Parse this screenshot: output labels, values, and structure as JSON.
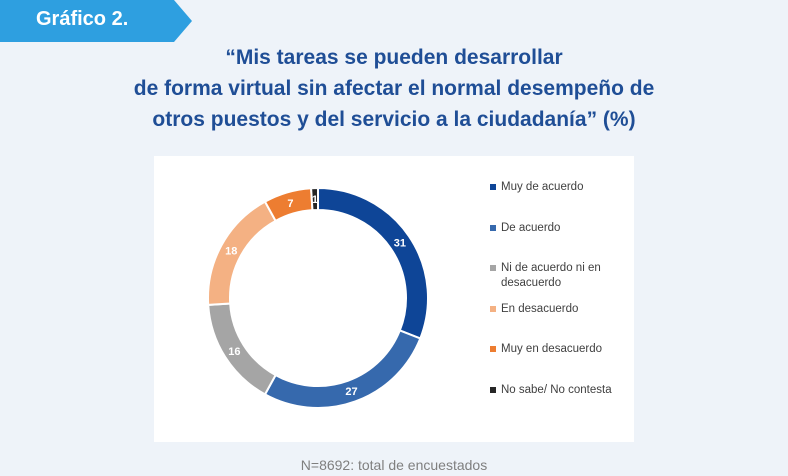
{
  "badge": {
    "label": "Gráfico 2."
  },
  "title_lines": [
    "“Mis tareas se pueden desarrollar",
    "de forma virtual sin afectar el normal desempeño de",
    "otros puestos y del servicio a la ciudadanía” (%)"
  ],
  "footnote": "N=8692: total de encuestados",
  "chart_data": {
    "type": "pie",
    "variant": "donut",
    "categories": [
      "Muy de acuerdo",
      "De acuerdo",
      "Ni de acuerdo ni en desacuerdo",
      "En desacuerdo",
      "Muy en desacuerdo",
      "No sabe/ No contesta"
    ],
    "values": [
      31,
      27,
      16,
      18,
      7,
      1
    ],
    "labels": [
      "31",
      "27",
      "16",
      "18",
      "7",
      "1"
    ],
    "colors": [
      "#0e4597",
      "#3669ad",
      "#a5a5a5",
      "#f4b183",
      "#ed7d31",
      "#262626"
    ],
    "legend_position": "right"
  }
}
